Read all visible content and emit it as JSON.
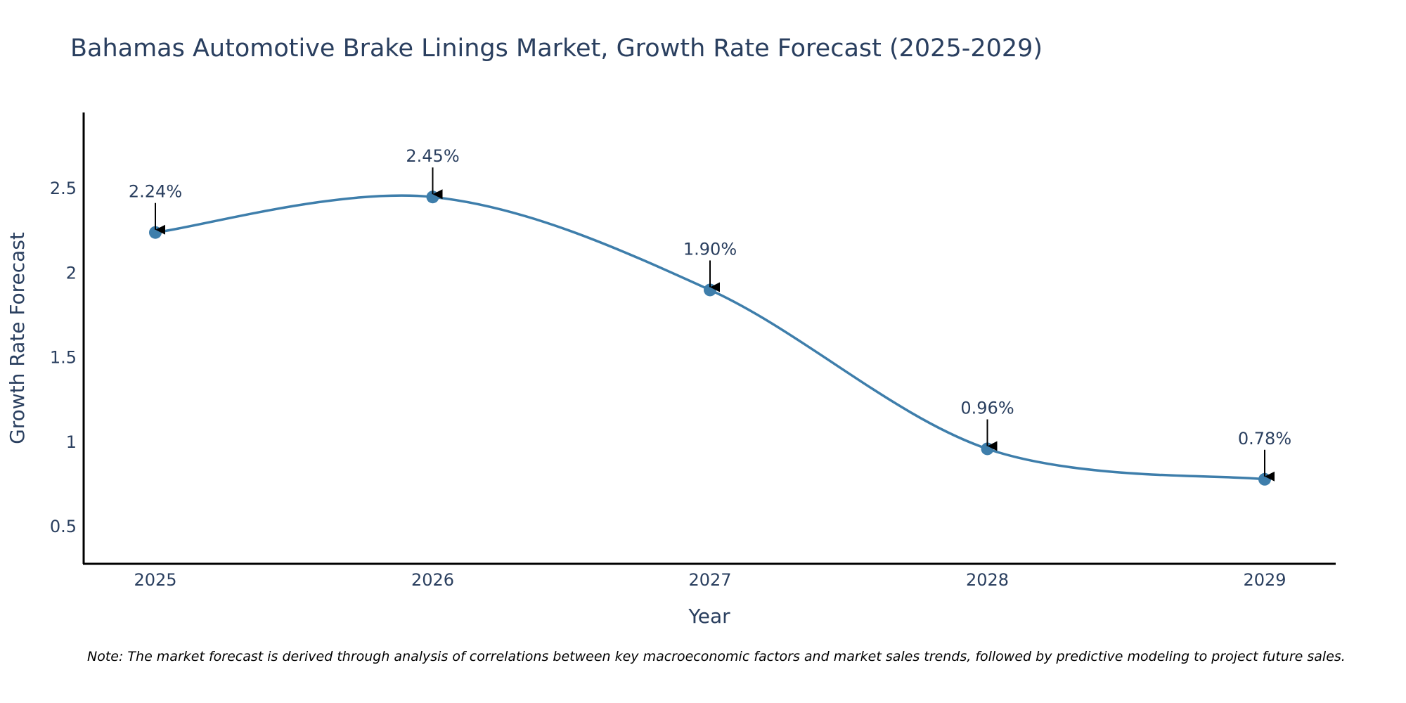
{
  "chart_data": {
    "type": "line",
    "title": "Bahamas Automotive Brake Linings Market, Growth Rate Forecast (2025-2029)",
    "xlabel": "Year",
    "ylabel": "Growth Rate Forecast",
    "categories": [
      "2025",
      "2026",
      "2027",
      "2028",
      "2029"
    ],
    "series": [
      {
        "name": "Growth Rate Forecast",
        "values": [
          2.24,
          2.45,
          1.9,
          0.96,
          0.78
        ],
        "labels": [
          "2.24%",
          "2.45%",
          "1.90%",
          "0.96%",
          "0.78%"
        ],
        "color": "#3e7eab",
        "line_shape": "spline"
      }
    ],
    "yticks": [
      0.5,
      1,
      1.5,
      2,
      2.5
    ],
    "ytick_labels": [
      "0.5",
      "1",
      "1.5",
      "2",
      "2.5"
    ],
    "ylim": [
      0.28,
      2.95
    ],
    "grid": false,
    "annotation_arrow_color": "#000000",
    "note": "Note: The market forecast is derived through analysis of correlations between key macroeconomic factors and market sales trends, followed by predictive modeling to project future sales."
  }
}
